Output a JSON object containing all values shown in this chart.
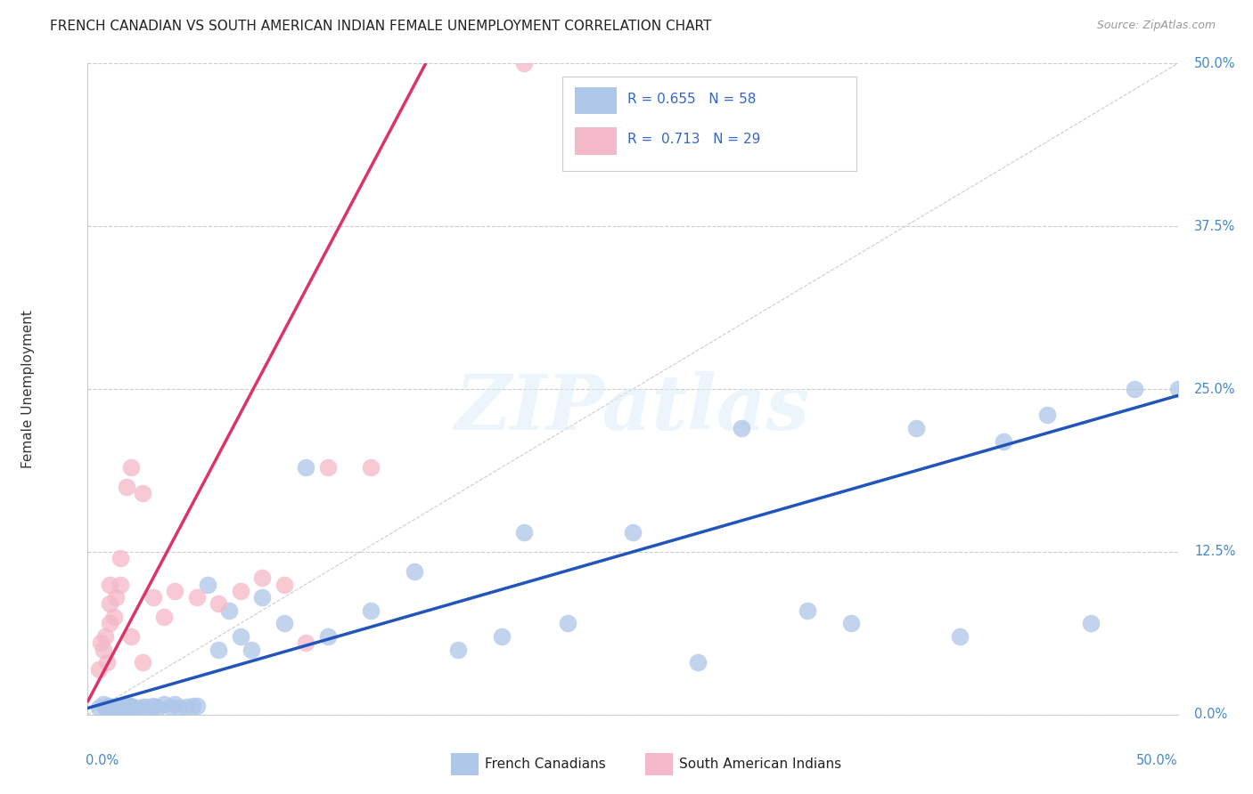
{
  "title": "FRENCH CANADIAN VS SOUTH AMERICAN INDIAN FEMALE UNEMPLOYMENT CORRELATION CHART",
  "source": "Source: ZipAtlas.com",
  "ylabel": "Female Unemployment",
  "ytick_labels": [
    "0.0%",
    "12.5%",
    "25.0%",
    "37.5%",
    "50.0%"
  ],
  "ytick_values": [
    0.0,
    0.125,
    0.25,
    0.375,
    0.5
  ],
  "xlim": [
    0.0,
    0.5
  ],
  "ylim": [
    0.0,
    0.5
  ],
  "blue_R": "0.655",
  "blue_N": "58",
  "pink_R": "0.713",
  "pink_N": "29",
  "blue_color": "#aec6e8",
  "pink_color": "#f4b8c8",
  "blue_line_color": "#2255bb",
  "pink_line_color": "#dd3366",
  "diagonal_color": "#cccccc",
  "watermark": "ZIPatlas",
  "legend_label_blue": "French Canadians",
  "legend_label_pink": "South American Indians",
  "blue_scatter_x": [
    0.005,
    0.007,
    0.008,
    0.009,
    0.01,
    0.01,
    0.012,
    0.013,
    0.014,
    0.015,
    0.015,
    0.016,
    0.017,
    0.018,
    0.019,
    0.02,
    0.02,
    0.02,
    0.022,
    0.025,
    0.027,
    0.03,
    0.03,
    0.032,
    0.035,
    0.038,
    0.04,
    0.042,
    0.045,
    0.048,
    0.05,
    0.055,
    0.06,
    0.065,
    0.07,
    0.075,
    0.08,
    0.09,
    0.1,
    0.11,
    0.13,
    0.15,
    0.17,
    0.19,
    0.2,
    0.22,
    0.25,
    0.28,
    0.3,
    0.33,
    0.35,
    0.38,
    0.4,
    0.42,
    0.44,
    0.46,
    0.48,
    0.5
  ],
  "blue_scatter_y": [
    0.005,
    0.008,
    0.005,
    0.006,
    0.005,
    0.007,
    0.005,
    0.006,
    0.005,
    0.005,
    0.006,
    0.005,
    0.006,
    0.005,
    0.007,
    0.005,
    0.006,
    0.007,
    0.005,
    0.006,
    0.006,
    0.006,
    0.007,
    0.005,
    0.008,
    0.006,
    0.008,
    0.005,
    0.006,
    0.007,
    0.007,
    0.1,
    0.05,
    0.08,
    0.06,
    0.05,
    0.09,
    0.07,
    0.19,
    0.06,
    0.08,
    0.11,
    0.05,
    0.06,
    0.14,
    0.07,
    0.14,
    0.04,
    0.22,
    0.08,
    0.07,
    0.22,
    0.06,
    0.21,
    0.23,
    0.07,
    0.25,
    0.25
  ],
  "pink_scatter_x": [
    0.005,
    0.006,
    0.007,
    0.008,
    0.009,
    0.01,
    0.01,
    0.01,
    0.012,
    0.013,
    0.015,
    0.015,
    0.018,
    0.02,
    0.02,
    0.025,
    0.025,
    0.03,
    0.035,
    0.04,
    0.05,
    0.06,
    0.07,
    0.08,
    0.09,
    0.1,
    0.11,
    0.13,
    0.2
  ],
  "pink_scatter_y": [
    0.035,
    0.055,
    0.05,
    0.06,
    0.04,
    0.07,
    0.085,
    0.1,
    0.075,
    0.09,
    0.1,
    0.12,
    0.175,
    0.19,
    0.06,
    0.04,
    0.17,
    0.09,
    0.075,
    0.095,
    0.09,
    0.085,
    0.095,
    0.105,
    0.1,
    0.055,
    0.19,
    0.19,
    0.5
  ],
  "blue_trend_x": [
    0.0,
    0.5
  ],
  "blue_trend_y": [
    0.005,
    0.245
  ],
  "pink_trend_x": [
    0.0,
    0.155
  ],
  "pink_trend_y": [
    0.01,
    0.5
  ]
}
